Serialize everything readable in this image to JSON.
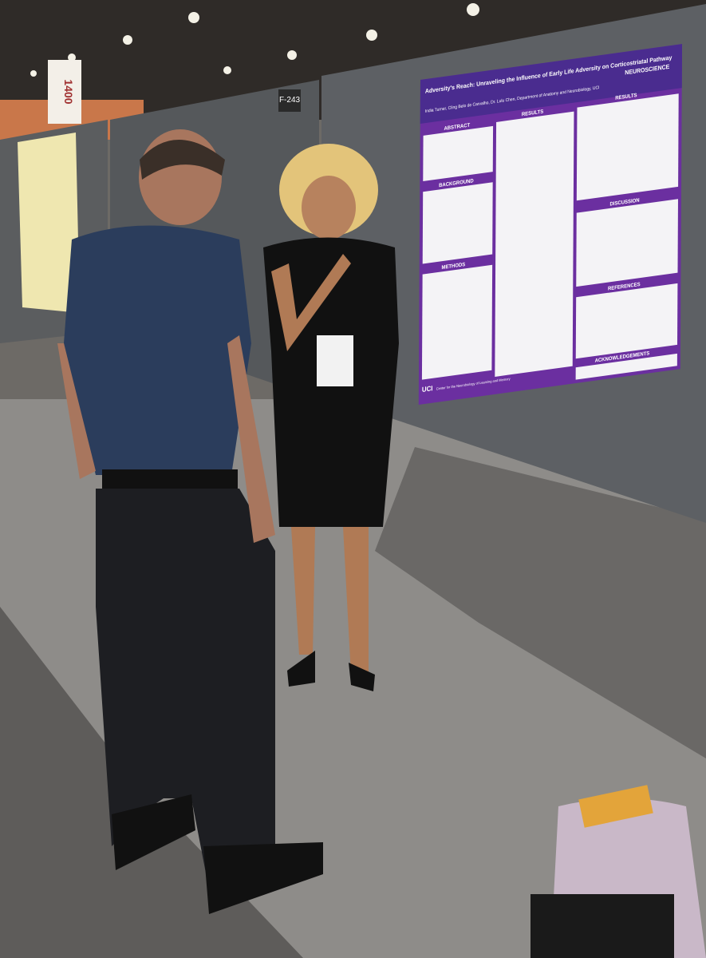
{
  "signs": {
    "aisle": "1400",
    "board": "F-243"
  },
  "poster": {
    "title": "Adversity's Reach: Unraveling the Influence of Early Life Adversity on Corticostriatal Pathway",
    "authors": "India Turner, Cling Belo de Carvalho, Dr. Lulu Chen, Department of Anatomy and Neurobiology, UCI",
    "logo": "NEUROSCIENCE",
    "sections": [
      "ABSTRACT",
      "RESULTS",
      "BACKGROUND",
      "METHODS",
      "RESULTS",
      "DISCUSSION",
      "REFERENCES",
      "ACKNOWLEDGEMENTS"
    ],
    "footer": "UCI",
    "footer_text": "Center for the Neurobiology of Learning and Memory"
  }
}
